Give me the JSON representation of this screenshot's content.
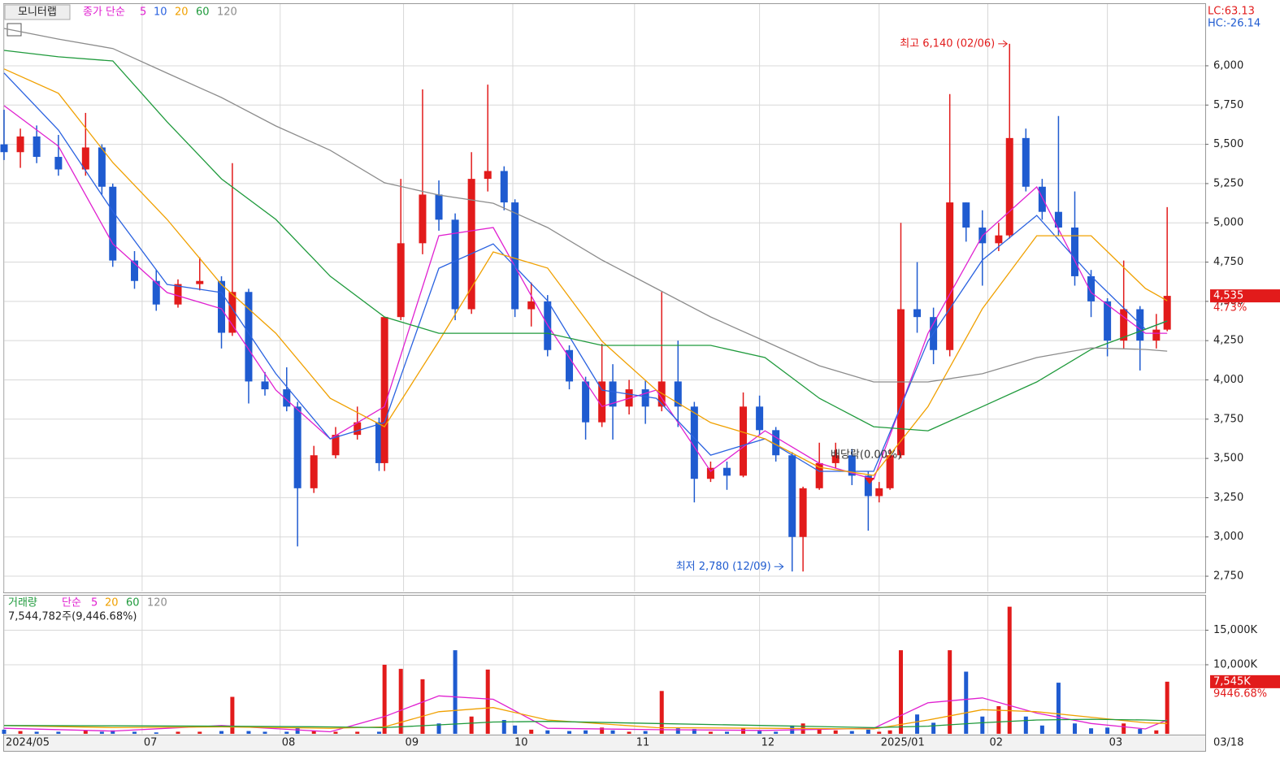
{
  "chart_data": [
    {
      "type": "candlestick",
      "title": "모니터랩",
      "ma_label": "종가 단순",
      "x": [
        0,
        3,
        6,
        10,
        15,
        18,
        20,
        24,
        28,
        32,
        36,
        40,
        42,
        45,
        48,
        52,
        54,
        57,
        61,
        65,
        69,
        70,
        73,
        77,
        80,
        83,
        86,
        89,
        92,
        94,
        97,
        100,
        104,
        107,
        110,
        112,
        115,
        118,
        121,
        124,
        127,
        130,
        133,
        136,
        139,
        142,
        145,
        147,
        150,
        153,
        156,
        159,
        161,
        163,
        165,
        168,
        171,
        174,
        177,
        180,
        183,
        185,
        188,
        191,
        194,
        197,
        200,
        203,
        206,
        209,
        212,
        214
      ],
      "open": [
        5500,
        5450,
        5550,
        5420,
        5340,
        5480,
        5230,
        4760,
        4630,
        4480,
        4610,
        4630,
        4300,
        4560,
        3990,
        3940,
        3830,
        3310,
        3520,
        3650,
        3730,
        3470,
        4400,
        4870,
        5180,
        5020,
        4450,
        5280,
        5330,
        5130,
        4450,
        4500,
        4190,
        3990,
        3730,
        3990,
        3830,
        3940,
        3830,
        3990,
        3830,
        3370,
        3440,
        3390,
        3830,
        3680,
        3520,
        3000,
        3310,
        3470,
        3520,
        3390,
        3260,
        3310,
        3520,
        4450,
        4400,
        4190,
        5130,
        4970,
        4870,
        4920,
        5540,
        5230,
        5070,
        4970,
        4660,
        4500,
        4250,
        4450,
        4250,
        4320
      ],
      "high": [
        5720,
        5600,
        5620,
        5560,
        5700,
        5500,
        5250,
        4820,
        4700,
        4640,
        4780,
        4660,
        5380,
        4580,
        4050,
        4080,
        3860,
        3580,
        3700,
        3830,
        3760,
        4400,
        5280,
        5850,
        5270,
        5060,
        5450,
        5880,
        5360,
        5150,
        4620,
        4540,
        4220,
        4020,
        4230,
        4100,
        4000,
        4000,
        4560,
        4250,
        3860,
        3480,
        3480,
        3920,
        3900,
        3700,
        3540,
        3320,
        3600,
        3600,
        3560,
        3420,
        3350,
        3560,
        5000,
        4750,
        4460,
        5820,
        5130,
        5080,
        5000,
        6140,
        5600,
        5280,
        5680,
        5200,
        4700,
        4520,
        4760,
        4470,
        4420,
        5100
      ],
      "low": [
        5400,
        5350,
        5380,
        5300,
        5300,
        5180,
        4720,
        4580,
        4440,
        4460,
        4570,
        4200,
        4280,
        3850,
        3900,
        3800,
        2940,
        3280,
        3500,
        3620,
        3420,
        3420,
        4380,
        4800,
        4950,
        4380,
        4420,
        5200,
        5080,
        4400,
        4340,
        4150,
        3940,
        3620,
        3700,
        3620,
        3780,
        3720,
        3800,
        3700,
        3220,
        3350,
        3300,
        3380,
        3650,
        3480,
        2780,
        2780,
        3300,
        3440,
        3330,
        3040,
        3220,
        3300,
        3500,
        4300,
        4100,
        4150,
        4880,
        4600,
        4820,
        4900,
        5200,
        5020,
        4920,
        4600,
        4400,
        4150,
        4200,
        4060,
        4200,
        4310
      ],
      "close": [
        5450,
        5550,
        5420,
        5340,
        5480,
        5230,
        4760,
        4630,
        4480,
        4610,
        4630,
        4300,
        4560,
        3990,
        3940,
        3830,
        3310,
        3520,
        3650,
        3730,
        3470,
        4400,
        4870,
        5180,
        5020,
        4450,
        5280,
        5330,
        5130,
        4450,
        4500,
        4190,
        3990,
        3730,
        3990,
        3830,
        3940,
        3830,
        3990,
        3830,
        3370,
        3440,
        3390,
        3830,
        3680,
        3520,
        3000,
        3310,
        3470,
        3520,
        3390,
        3260,
        3310,
        3520,
        4450,
        4400,
        4190,
        5130,
        4970,
        4870,
        4920,
        5540,
        5230,
        5070,
        4970,
        4660,
        4500,
        4250,
        4450,
        4250,
        4320,
        4535
      ],
      "up_color": "#e21b1b",
      "down_color": "#1f5bd0",
      "series": [
        {
          "name": "5",
          "color": "#e020d0",
          "x": [
            0,
            10,
            20,
            30,
            40,
            50,
            60,
            70,
            80,
            90,
            100,
            110,
            120,
            130,
            140,
            150,
            160,
            170,
            180,
            190,
            200,
            210,
            214
          ],
          "values": [
            5746,
            5488,
            4866,
            4556,
            4453,
            3935,
            3624,
            3830,
            4918,
            4970,
            4349,
            3830,
            3935,
            3418,
            3676,
            3469,
            3366,
            4297,
            4918,
            5229,
            4556,
            4297,
            4297
          ]
        },
        {
          "name": "10",
          "color": "#2a62e0",
          "x": [
            0,
            10,
            20,
            30,
            40,
            50,
            60,
            70,
            80,
            90,
            100,
            110,
            120,
            130,
            140,
            150,
            160,
            170,
            180,
            190,
            200,
            210,
            214
          ],
          "values": [
            5954,
            5591,
            5073,
            4608,
            4556,
            4039,
            3624,
            3728,
            4711,
            4866,
            4504,
            3935,
            3883,
            3521,
            3625,
            3418,
            3418,
            4246,
            4763,
            5047,
            4660,
            4323,
            4375
          ]
        },
        {
          "name": "20",
          "color": "#f0a000",
          "x": [
            0,
            10,
            20,
            30,
            40,
            50,
            60,
            70,
            80,
            90,
            100,
            110,
            120,
            130,
            140,
            150,
            160,
            170,
            180,
            190,
            200,
            210,
            214
          ],
          "values": [
            5980,
            5825,
            5384,
            5022,
            4608,
            4297,
            3883,
            3702,
            4246,
            4815,
            4712,
            4246,
            3935,
            3728,
            3625,
            3443,
            3392,
            3830,
            4453,
            4918,
            4918,
            4582,
            4504
          ]
        },
        {
          "name": "60",
          "color": "#1f9a3c",
          "x": [
            0,
            10,
            20,
            30,
            40,
            50,
            60,
            70,
            80,
            90,
            100,
            110,
            120,
            130,
            140,
            150,
            160,
            170,
            180,
            190,
            200,
            210,
            214
          ],
          "values": [
            6098,
            6057,
            6031,
            5643,
            5280,
            5022,
            4660,
            4401,
            4297,
            4297,
            4297,
            4220,
            4220,
            4220,
            4142,
            3883,
            3702,
            3676,
            3830,
            3987,
            4194,
            4323,
            4375
          ]
        },
        {
          "name": "120",
          "color": "#8c8c8c",
          "x": [
            0,
            10,
            20,
            30,
            40,
            50,
            60,
            70,
            80,
            90,
            100,
            110,
            120,
            130,
            140,
            150,
            160,
            170,
            180,
            190,
            200,
            210,
            214
          ],
          "values": [
            6238,
            6170,
            6110,
            5953,
            5798,
            5617,
            5462,
            5255,
            5177,
            5125,
            4970,
            4763,
            4582,
            4401,
            4246,
            4090,
            3987,
            3987,
            4039,
            4142,
            4204,
            4194,
            4183
          ]
        }
      ],
      "xlim": [
        0,
        221
      ],
      "xticks": [
        {
          "value": 0,
          "label": "2024/05"
        },
        {
          "value": 25.4,
          "label": "07"
        },
        {
          "value": 50.8,
          "label": "08"
        },
        {
          "value": 73.5,
          "label": "09"
        },
        {
          "value": 93.6,
          "label": "10"
        },
        {
          "value": 116,
          "label": "11"
        },
        {
          "value": 139,
          "label": "12"
        },
        {
          "value": 161,
          "label": "2025/01"
        },
        {
          "value": 181,
          "label": "02"
        },
        {
          "value": 203,
          "label": "03"
        },
        {
          "value": 221,
          "label": "03/18"
        }
      ],
      "ylim": [
        2652,
        6393
      ],
      "yticks": [
        {
          "value": 2750,
          "label": "2,750"
        },
        {
          "value": 3000,
          "label": "3,000"
        },
        {
          "value": 3250,
          "label": "3,250"
        },
        {
          "value": 3500,
          "label": "3,500"
        },
        {
          "value": 3750,
          "label": "3,750"
        },
        {
          "value": 4000,
          "label": "4,000"
        },
        {
          "value": 4250,
          "label": "4,250"
        },
        {
          "value": 4500,
          "label": "4,500"
        },
        {
          "value": 4750,
          "label": "4,750"
        },
        {
          "value": 5000,
          "label": "5,000"
        },
        {
          "value": 5250,
          "label": "5,250"
        },
        {
          "value": 5500,
          "label": "5,500"
        },
        {
          "value": 5750,
          "label": "5,750"
        },
        {
          "value": 6000,
          "label": "6,000"
        }
      ],
      "grid": true,
      "high_note": "최고 6,140 (02/06)",
      "low_note": "최저 2,780 (12/09)",
      "event_note": "배당락(0.00%)",
      "lc_label": "LC:63.13",
      "hc_label": "HC:-26.14",
      "last_label": "4,535",
      "change_label": "4.73%"
    },
    {
      "type": "bar",
      "title": "거래량",
      "ma_label": "단순",
      "info": "7,544,782주(9,446.68%)",
      "x": [
        0,
        3,
        6,
        10,
        15,
        18,
        20,
        24,
        28,
        32,
        36,
        40,
        42,
        45,
        48,
        52,
        54,
        57,
        61,
        65,
        69,
        70,
        73,
        77,
        80,
        83,
        86,
        89,
        92,
        94,
        97,
        100,
        104,
        107,
        110,
        112,
        115,
        118,
        121,
        124,
        127,
        130,
        133,
        136,
        139,
        142,
        145,
        147,
        150,
        153,
        156,
        159,
        161,
        163,
        165,
        168,
        171,
        174,
        177,
        180,
        183,
        185,
        188,
        191,
        194,
        197,
        200,
        203,
        206,
        209,
        212,
        214
      ],
      "values": [
        600,
        400,
        300,
        300,
        500,
        300,
        500,
        300,
        200,
        300,
        300,
        400,
        5350,
        400,
        300,
        300,
        900,
        400,
        300,
        300,
        300,
        10000,
        9400,
        7900,
        1500,
        12100,
        2500,
        9300,
        2000,
        1200,
        600,
        500,
        400,
        500,
        900,
        500,
        300,
        400,
        6200,
        800,
        700,
        300,
        300,
        800,
        400,
        300,
        1200,
        1500,
        600,
        500,
        400,
        600,
        300,
        500,
        12100,
        2800,
        1600,
        12100,
        9000,
        2500,
        4000,
        18400,
        2500,
        1200,
        7400,
        1500,
        800,
        900,
        1500,
        700,
        500,
        7545
      ],
      "series": [
        {
          "name": "5",
          "color": "#e020d0",
          "x": [
            0,
            20,
            40,
            60,
            70,
            80,
            90,
            100,
            120,
            140,
            160,
            170,
            180,
            190,
            200,
            210,
            214
          ],
          "values": [
            800,
            400,
            1200,
            300,
            2500,
            5500,
            5000,
            800,
            600,
            500,
            800,
            4500,
            5200,
            3000,
            1500,
            700,
            2000
          ]
        },
        {
          "name": "20",
          "color": "#f0a000",
          "x": [
            0,
            20,
            40,
            60,
            70,
            80,
            90,
            100,
            120,
            140,
            160,
            170,
            180,
            190,
            200,
            210,
            214
          ],
          "values": [
            1200,
            900,
            1000,
            800,
            1000,
            3200,
            3800,
            2000,
            900,
            800,
            700,
            2000,
            3500,
            3200,
            2400,
            1600,
            1500
          ]
        },
        {
          "name": "60",
          "color": "#1f9a3c",
          "x": [
            0,
            20,
            40,
            60,
            70,
            80,
            90,
            100,
            120,
            140,
            160,
            170,
            180,
            190,
            200,
            210,
            214
          ],
          "values": [
            1200,
            1150,
            1100,
            1000,
            900,
            1300,
            1700,
            1800,
            1500,
            1200,
            900,
            1100,
            1600,
            2000,
            2100,
            2000,
            1900
          ]
        },
        {
          "name": "120",
          "color": "#8c8c8c",
          "x": [],
          "values": []
        }
      ],
      "ylim": [
        0,
        20000
      ],
      "yticks": [
        {
          "value": 10000,
          "label": "10,000K"
        },
        {
          "value": 15000,
          "label": "15,000K"
        }
      ],
      "grid": true,
      "last_label": "7,545K",
      "change_label": "9446.68%"
    }
  ]
}
